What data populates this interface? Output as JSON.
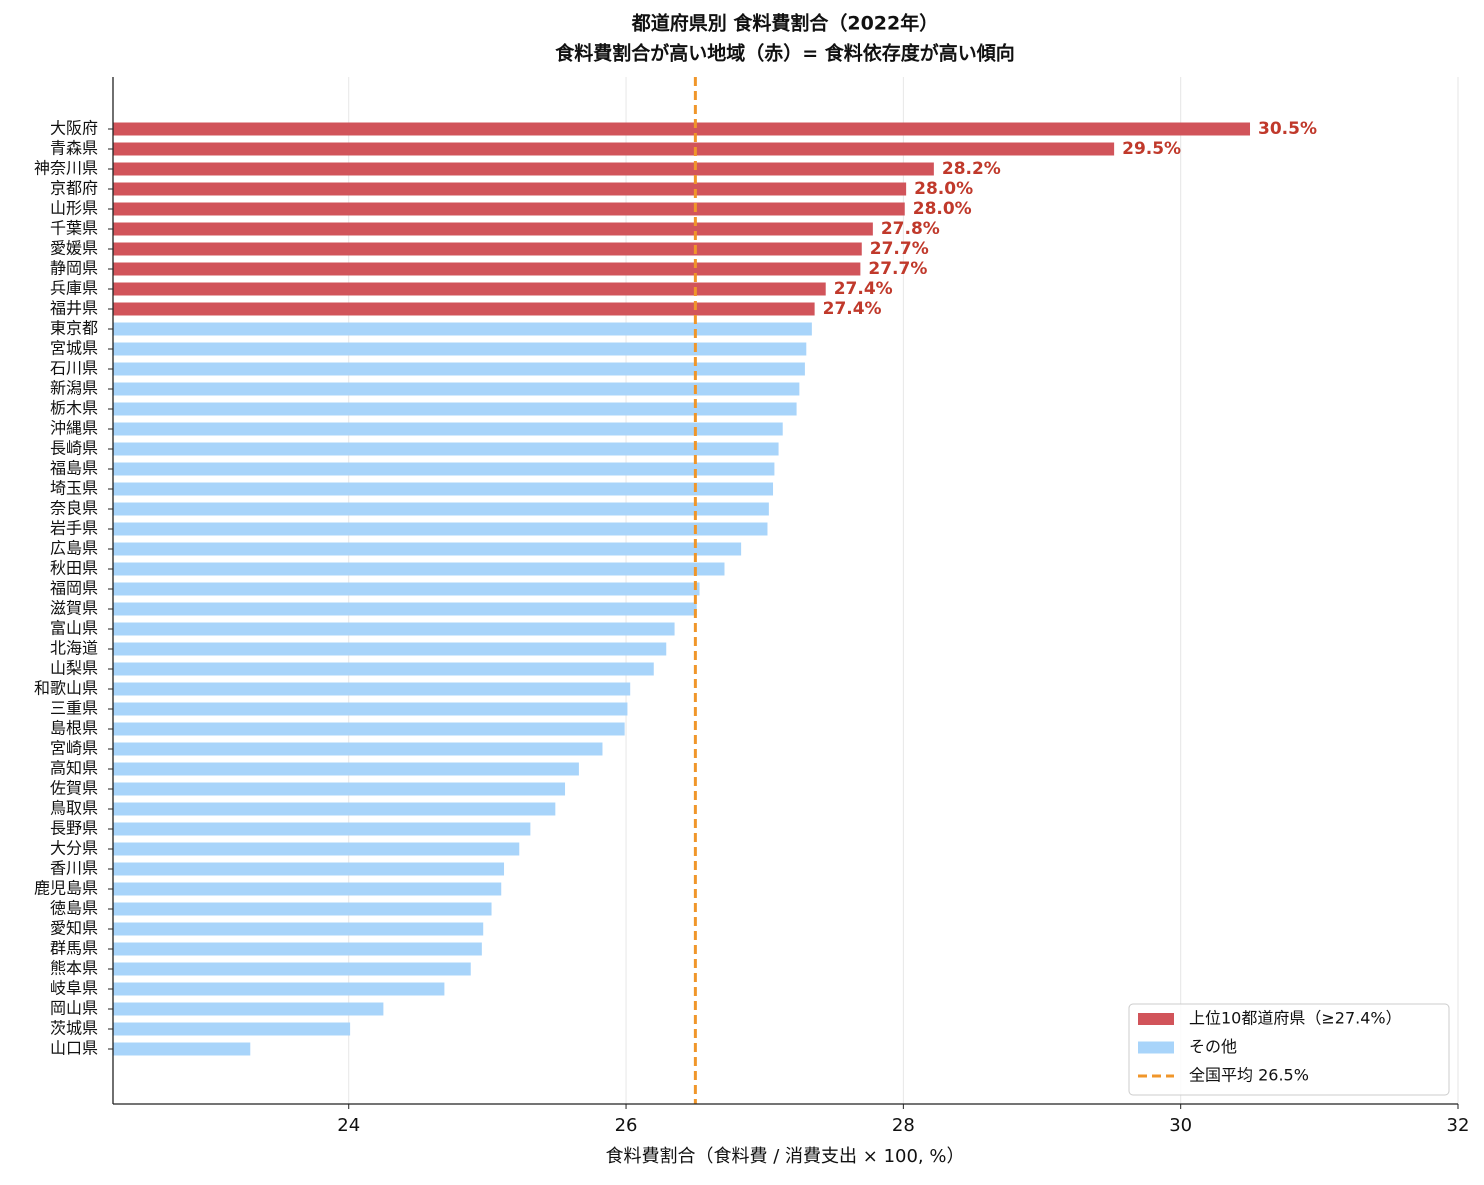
{
  "chart_data": {
    "type": "barh",
    "title": "都道府県別 食料費割合（2022年）",
    "subtitle": "食料費割合が高い地域（赤）= 食料依存度が高い傾向",
    "x_label": "食料費割合（食料費 / 消費支出 × 100, %）",
    "categories": [
      "大阪府",
      "青森県",
      "神奈川県",
      "京都府",
      "山形県",
      "千葉県",
      "愛媛県",
      "静岡県",
      "兵庫県",
      "福井県",
      "東京都",
      "宮城県",
      "石川県",
      "新潟県",
      "栃木県",
      "沖縄県",
      "長崎県",
      "福島県",
      "埼玉県",
      "奈良県",
      "岩手県",
      "広島県",
      "秋田県",
      "福岡県",
      "滋賀県",
      "富山県",
      "北海道",
      "山梨県",
      "和歌山県",
      "三重県",
      "島根県",
      "宮崎県",
      "高知県",
      "佐賀県",
      "鳥取県",
      "長野県",
      "大分県",
      "香川県",
      "鹿児島県",
      "徳島県",
      "愛知県",
      "群馬県",
      "熊本県",
      "岐阜県",
      "岡山県",
      "茨城県",
      "山口県"
    ],
    "series": [
      {
        "name": "上位10都道府県（≥27.4%）",
        "color": "#d1545a",
        "values": [
          30.5,
          29.52,
          28.22,
          28.02,
          28.01,
          27.78,
          27.7,
          27.69,
          27.44,
          27.36,
          null,
          null,
          null,
          null,
          null,
          null,
          null,
          null,
          null,
          null,
          null,
          null,
          null,
          null,
          null,
          null,
          null,
          null,
          null,
          null,
          null,
          null,
          null,
          null,
          null,
          null,
          null,
          null,
          null,
          null,
          null,
          null,
          null,
          null,
          null,
          null,
          null
        ],
        "value_labels": [
          "30.5%",
          "29.5%",
          "28.2%",
          "28.0%",
          "28.0%",
          "27.8%",
          "27.7%",
          "27.7%",
          "27.4%",
          "27.4%",
          null,
          null,
          null,
          null,
          null,
          null,
          null,
          null,
          null,
          null,
          null,
          null,
          null,
          null,
          null,
          null,
          null,
          null,
          null,
          null,
          null,
          null,
          null,
          null,
          null,
          null,
          null,
          null,
          null,
          null,
          null,
          null,
          null,
          null,
          null,
          null,
          null
        ]
      },
      {
        "name": "その他",
        "color": "#a8d4fa",
        "values": [
          null,
          null,
          null,
          null,
          null,
          null,
          null,
          null,
          null,
          null,
          27.34,
          27.3,
          27.29,
          27.25,
          27.23,
          27.13,
          27.1,
          27.07,
          27.06,
          27.03,
          27.02,
          26.83,
          26.71,
          26.53,
          26.51,
          26.35,
          26.29,
          26.2,
          26.03,
          26.01,
          25.99,
          25.83,
          25.66,
          25.56,
          25.49,
          25.31,
          25.23,
          25.12,
          25.1,
          25.03,
          24.97,
          24.96,
          24.88,
          24.69,
          24.25,
          24.01,
          23.29
        ]
      }
    ],
    "reference_line": {
      "value": 26.5,
      "label": "全国平均 26.5%",
      "color": "#f0962a"
    },
    "xlim": [
      22.3,
      32.0
    ],
    "xticks": [
      24,
      26,
      28,
      30,
      32
    ],
    "grid": true,
    "legend": "lower right"
  }
}
